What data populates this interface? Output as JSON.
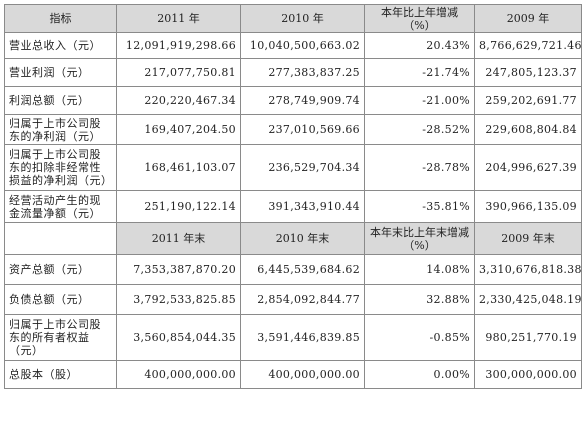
{
  "header1": {
    "col0": "指标",
    "col1": "2011 年",
    "col2": "2010 年",
    "col3": "本年比上年增减（%）",
    "col4": "2009 年"
  },
  "rows1": [
    {
      "label": "营业总收入（元）",
      "v2011": "12,091,919,298.66",
      "v2010": "10,040,500,663.02",
      "chg": "20.43%",
      "v2009": "8,766,629,721.46"
    },
    {
      "label": "营业利润（元）",
      "v2011": "217,077,750.81",
      "v2010": "277,383,837.25",
      "chg": "-21.74%",
      "v2009": "247,805,123.37"
    },
    {
      "label": "利润总额（元）",
      "v2011": "220,220,467.34",
      "v2010": "278,749,909.74",
      "chg": "-21.00%",
      "v2009": "259,202,691.77"
    },
    {
      "label": "归属于上市公司股东的净利润（元）",
      "v2011": "169,407,204.50",
      "v2010": "237,010,569.66",
      "chg": "-28.52%",
      "v2009": "229,608,804.84"
    },
    {
      "label": "归属于上市公司股东的扣除非经常性损益的净利润（元）",
      "v2011": "168,461,103.07",
      "v2010": "236,529,704.34",
      "chg": "-28.78%",
      "v2009": "204,996,627.39"
    },
    {
      "label": "经营活动产生的现金流量净额（元）",
      "v2011": "251,190,122.14",
      "v2010": "391,343,910.44",
      "chg": "-35.81%",
      "v2009": "390,966,135.09"
    }
  ],
  "header2": {
    "col1": "2011 年末",
    "col2": "2010 年末",
    "col3": "本年末比上年末增减（%）",
    "col4": "2009 年末"
  },
  "rows2": [
    {
      "label": "资产总额（元）",
      "v2011": "7,353,387,870.20",
      "v2010": "6,445,539,684.62",
      "chg": "14.08%",
      "v2009": "3,310,676,818.38"
    },
    {
      "label": "负债总额（元）",
      "v2011": "3,792,533,825.85",
      "v2010": "2,854,092,844.77",
      "chg": "32.88%",
      "v2009": "2,330,425,048.19"
    },
    {
      "label": "归属于上市公司股东的所有者权益（元）",
      "v2011": "3,560,854,044.35",
      "v2010": "3,591,446,839.85",
      "chg": "-0.85%",
      "v2009": "980,251,770.19"
    },
    {
      "label": "总股本（股）",
      "v2011": "400,000,000.00",
      "v2010": "400,000,000.00",
      "chg": "0.00%",
      "v2009": "300,000,000.00"
    }
  ]
}
